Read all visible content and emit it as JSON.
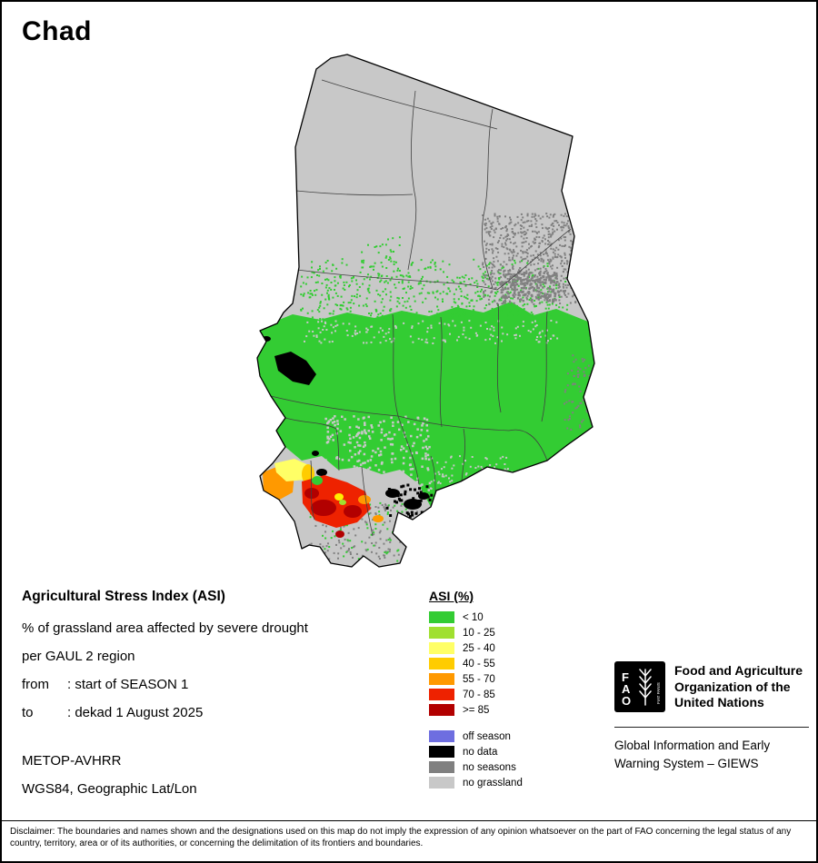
{
  "title": "Chad",
  "info": {
    "heading": "Agricultural Stress Index (ASI)",
    "subtitle_line1": "% of grassland area affected by severe drought",
    "subtitle_line2": "per GAUL 2 region",
    "from_label": "from",
    "from_value": ": start of SEASON 1",
    "to_label": "to",
    "to_value": ": dekad 1 August 2025",
    "sensor": "METOP-AVHRR",
    "projection": "WGS84, Geographic Lat/Lon"
  },
  "legend": {
    "title": "ASI (%)",
    "items": [
      {
        "label": "< 10",
        "color": "#33cc33"
      },
      {
        "label": "10 - 25",
        "color": "#a0e030"
      },
      {
        "label": "25 - 40",
        "color": "#ffff66"
      },
      {
        "label": "40 - 55",
        "color": "#ffcc00"
      },
      {
        "label": "55 - 70",
        "color": "#ff9900"
      },
      {
        "label": "70 - 85",
        "color": "#ee2200"
      },
      {
        "label": ">= 85",
        "color": "#b20000"
      }
    ],
    "status_items": [
      {
        "label": "off season",
        "color": "#6e6ee0"
      },
      {
        "label": "no data",
        "color": "#000000"
      },
      {
        "label": "no seasons",
        "color": "#808080"
      },
      {
        "label": "no grassland",
        "color": "#c8c8c8"
      }
    ]
  },
  "map": {
    "country": "Chad",
    "palette": {
      "green": "#33cc33",
      "light_green": "#a0e030",
      "yellow": "#ffff66",
      "bright_yellow": "#ffee00",
      "amber": "#ffcc00",
      "orange": "#ff9900",
      "red": "#ee2200",
      "dark_red": "#b20000",
      "no_data": "#000000",
      "no_seasons": "#808080",
      "no_grassland": "#c8c8c8",
      "border": "#000000",
      "admin_line": "#404040"
    }
  },
  "footer": {
    "org_line1": "Food and Agriculture",
    "org_line2": "Organization of the",
    "org_line3": "United Nations",
    "giews_line1": "Global Information and Early",
    "giews_line2": "Warning System – GIEWS",
    "logo_letter_f": "F",
    "logo_letter_a": "A",
    "logo_letter_o": "O",
    "logo_motto": "FIAT PANIS"
  },
  "disclaimer": "Disclaimer: The boundaries and names shown and the designations used on this map do not imply the expression of any opinion whatsoever on the part of FAO concerning the legal status of any country, territory, area or of its authorities, or concerning the delimitation of its frontiers and boundaries."
}
